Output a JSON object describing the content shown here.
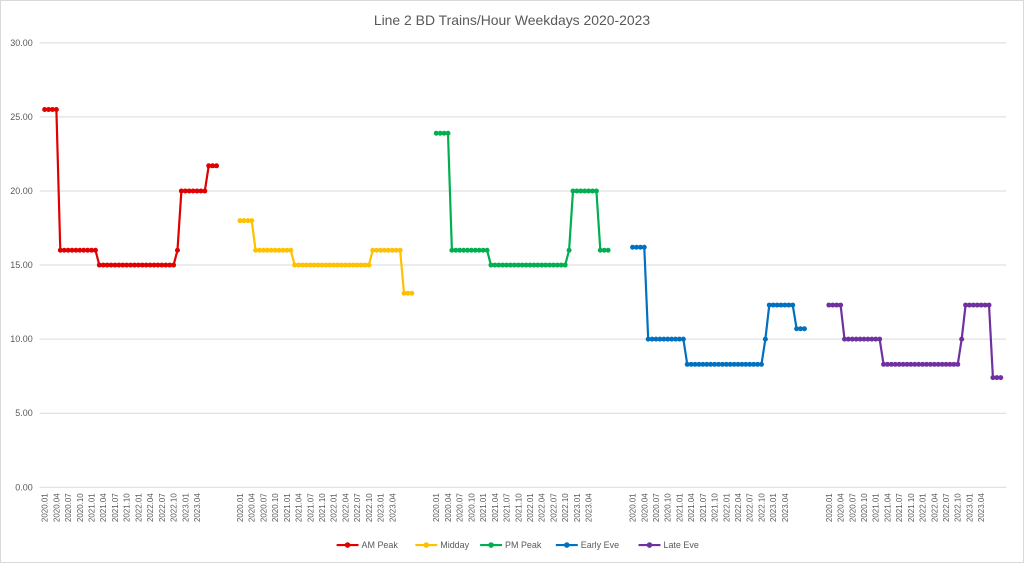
{
  "chart_data": {
    "type": "line",
    "title": "Line 2 BD Trains/Hour Weekdays 2020-2023",
    "xlabel": "",
    "ylabel": "",
    "ylim": [
      0,
      30
    ],
    "yticks": [
      "0.00",
      "5.00",
      "10.00",
      "15.00",
      "20.00",
      "25.00",
      "30.00"
    ],
    "grid": true,
    "legend_position": "bottom",
    "x_tick_labels": [
      "2020.01",
      "2020.04",
      "2020.07",
      "2020.10",
      "2021.01",
      "2021.04",
      "2021.07",
      "2021.10",
      "2022.01",
      "2022.04",
      "2022.07",
      "2022.10",
      "2023.01",
      "2023.04"
    ],
    "series": [
      {
        "name": "AM Peak",
        "color": "#e00000",
        "values": [
          25.5,
          25.5,
          25.5,
          25.5,
          16,
          16,
          16,
          16,
          16,
          16,
          16,
          16,
          16,
          16,
          15,
          15,
          15,
          15,
          15,
          15,
          15,
          15,
          15,
          15,
          15,
          15,
          15,
          15,
          15,
          15,
          15,
          15,
          15,
          15,
          16,
          20,
          20,
          20,
          20,
          20,
          20,
          20,
          21.7,
          21.7,
          21.7
        ]
      },
      {
        "name": "Midday",
        "color": "#ffc000",
        "values": [
          18,
          18,
          18,
          18,
          16,
          16,
          16,
          16,
          16,
          16,
          16,
          16,
          16,
          16,
          15,
          15,
          15,
          15,
          15,
          15,
          15,
          15,
          15,
          15,
          15,
          15,
          15,
          15,
          15,
          15,
          15,
          15,
          15,
          15,
          16,
          16,
          16,
          16,
          16,
          16,
          16,
          16,
          13.1,
          13.1,
          13.1
        ]
      },
      {
        "name": "PM Peak",
        "color": "#00b050",
        "values": [
          23.9,
          23.9,
          23.9,
          23.9,
          16,
          16,
          16,
          16,
          16,
          16,
          16,
          16,
          16,
          16,
          15,
          15,
          15,
          15,
          15,
          15,
          15,
          15,
          15,
          15,
          15,
          15,
          15,
          15,
          15,
          15,
          15,
          15,
          15,
          15,
          16,
          20,
          20,
          20,
          20,
          20,
          20,
          20,
          16,
          16,
          16
        ]
      },
      {
        "name": "Early Eve",
        "color": "#0070c0",
        "values": [
          16.2,
          16.2,
          16.2,
          16.2,
          10,
          10,
          10,
          10,
          10,
          10,
          10,
          10,
          10,
          10,
          8.3,
          8.3,
          8.3,
          8.3,
          8.3,
          8.3,
          8.3,
          8.3,
          8.3,
          8.3,
          8.3,
          8.3,
          8.3,
          8.3,
          8.3,
          8.3,
          8.3,
          8.3,
          8.3,
          8.3,
          10,
          12.3,
          12.3,
          12.3,
          12.3,
          12.3,
          12.3,
          12.3,
          10.7,
          10.7,
          10.7
        ]
      },
      {
        "name": "Late Eve",
        "color": "#7030a0",
        "values": [
          12.3,
          12.3,
          12.3,
          12.3,
          10,
          10,
          10,
          10,
          10,
          10,
          10,
          10,
          10,
          10,
          8.3,
          8.3,
          8.3,
          8.3,
          8.3,
          8.3,
          8.3,
          8.3,
          8.3,
          8.3,
          8.3,
          8.3,
          8.3,
          8.3,
          8.3,
          8.3,
          8.3,
          8.3,
          8.3,
          8.3,
          10,
          12.3,
          12.3,
          12.3,
          12.3,
          12.3,
          12.3,
          12.3,
          7.4,
          7.4,
          7.4
        ]
      }
    ]
  }
}
